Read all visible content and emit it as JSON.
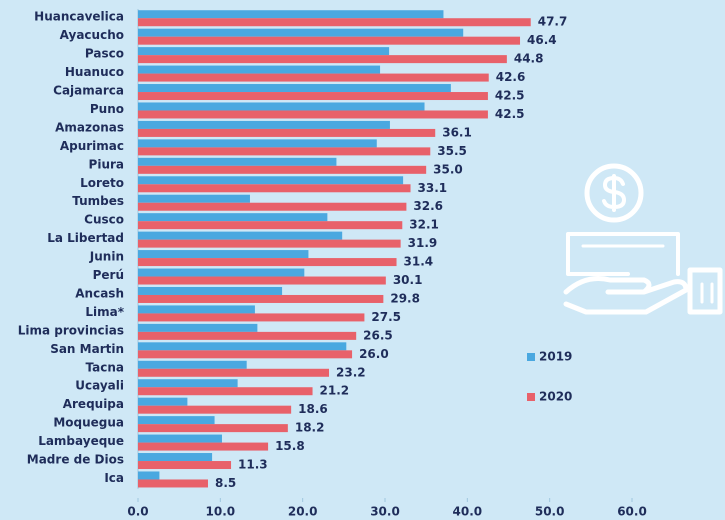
{
  "chart_data": {
    "type": "hbar",
    "categories": [
      "Huancavelica",
      "Ayacucho",
      "Pasco",
      "Huanuco",
      "Cajamarca",
      "Puno",
      "Amazonas",
      "Apurimac",
      "Piura",
      "Loreto",
      "Tumbes",
      "Cusco",
      "La Libertad",
      "Junin",
      "Perú",
      "Ancash",
      "Lima*",
      "Lima provincias",
      "San Martin",
      "Tacna",
      "Ucayali",
      "Arequipa",
      "Moquegua",
      "Lambayeque",
      "Madre de Dios",
      "Ica"
    ],
    "series": [
      {
        "name": "2019",
        "color": "#4aa8e0",
        "values": [
          37.1,
          39.5,
          30.5,
          29.4,
          38.0,
          34.8,
          30.6,
          29.0,
          24.1,
          32.2,
          13.6,
          23.0,
          24.8,
          20.7,
          20.2,
          17.5,
          14.2,
          14.5,
          25.3,
          13.2,
          12.1,
          6.0,
          9.3,
          10.2,
          9.0,
          2.6
        ]
      },
      {
        "name": "2020",
        "color": "#e8616a",
        "values": [
          47.7,
          46.4,
          44.8,
          42.6,
          42.5,
          42.5,
          36.1,
          35.5,
          35.0,
          33.1,
          32.6,
          32.1,
          31.9,
          31.4,
          30.1,
          29.8,
          27.5,
          26.5,
          26.0,
          23.2,
          21.2,
          18.6,
          18.2,
          15.8,
          11.3,
          8.5
        ],
        "value_labels": [
          "47.7",
          "46.4",
          "44.8",
          "42.6",
          "42.5",
          "42.5",
          "36.1",
          "35.5",
          "35.0",
          "33.1",
          "32.6",
          "32.1",
          "31.9",
          "31.4",
          "30.1",
          "29.8",
          "27.5",
          "26.5",
          "26.0",
          "23.2",
          "21.2",
          "18.6",
          "18.2",
          "15.8",
          "11.3",
          "8.5"
        ]
      }
    ],
    "xlim": [
      0,
      60
    ],
    "xticks": [
      {
        "value": 0,
        "label": "0.0"
      },
      {
        "value": 10,
        "label": "10.0"
      },
      {
        "value": 20,
        "label": "20.0"
      },
      {
        "value": 30,
        "label": "30.0"
      },
      {
        "value": 40,
        "label": "40.0"
      },
      {
        "value": 50,
        "label": "50.0"
      },
      {
        "value": 60,
        "label": "60.0"
      }
    ],
    "legend": "right"
  }
}
